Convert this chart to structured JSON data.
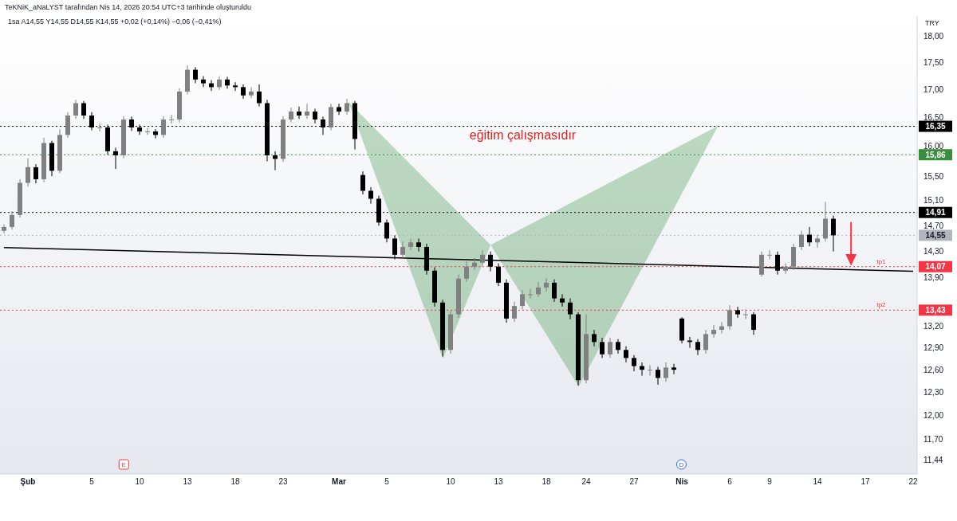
{
  "chart_data": {
    "type": "candlestick",
    "annotations": [
      "TeKNiK_aNaLYST tarafından Nis 14, 2026 20:54 UTC+3 tarihinde oluşturuldu",
      "1sa  A14,55  Y14,55  D14,55  K14,55  +0,02 (+0,14%)  −0,06 (−0,41%)",
      "eğitim çalışmasıdır",
      "TRY",
      "E",
      "D",
      {
        "text": "tp1",
        "y": 14.07
      },
      {
        "text": "tp2",
        "y": 13.43
      }
    ],
    "colors": [
      "#808080",
      "#808080",
      "#808080",
      "#808080",
      "#000000",
      "#808080",
      "#000000",
      "#808080",
      "#808080",
      "#808080",
      "#000000",
      "#000000",
      "#808080",
      "#000000",
      "#000000",
      "#808080",
      "#000000",
      "#000000",
      "#808080",
      "#000000",
      "#808080",
      "#808080",
      "#808080",
      "#808080",
      "#000000",
      "#000000",
      "#000000",
      "#808080",
      "#000000",
      "#000000",
      "#000000",
      "#808080",
      "#000000",
      "#000000",
      "#000000",
      "#808080",
      "#808080",
      "#000000",
      "#808080",
      "#000000",
      "#000000",
      "#808080",
      "#000000",
      "#808080",
      "#000000",
      "#000000",
      "#000000",
      "#000000",
      "#000000",
      "#000000",
      "#808080",
      "#808080",
      "#000000",
      "#000000",
      "#000000",
      "#000000",
      "#808080",
      "#808080",
      "#808080",
      "#808080",
      "#808080",
      "#000000",
      "#000000",
      "#000000",
      "#808080",
      "#808080",
      "#808080",
      "#808080",
      "#808080",
      "#000000",
      "#000000",
      "#000000",
      "#000000",
      "#808080",
      "#000000",
      "#000000",
      "#808080",
      "#000000",
      "#000000",
      "#000000",
      "#000000",
      "#808080",
      "#000000",
      "#808080",
      "#000000",
      "#000000",
      "#000000",
      "#000000",
      "#808080",
      "#808080",
      "#808080",
      "#808080",
      "#000000",
      "#808080",
      "#000000",
      "#808080",
      "#808080",
      "#000000",
      "#808080",
      "#808080",
      "#808080",
      "#000000",
      "#808080",
      "#808080",
      "#000000",
      null,
      null,
      null,
      null,
      null,
      null,
      null,
      null,
      null,
      null
    ],
    "categories": [
      null,
      null,
      null,
      "Şub",
      null,
      null,
      null,
      null,
      null,
      null,
      null,
      "5",
      null,
      null,
      null,
      null,
      null,
      "10",
      null,
      null,
      null,
      null,
      null,
      "13",
      null,
      null,
      null,
      null,
      null,
      "18",
      null,
      null,
      null,
      null,
      null,
      "23",
      null,
      null,
      null,
      null,
      null,
      null,
      "Mar",
      null,
      null,
      null,
      null,
      null,
      "5",
      null,
      null,
      null,
      null,
      null,
      null,
      null,
      "10",
      null,
      null,
      null,
      null,
      null,
      "13",
      null,
      null,
      null,
      null,
      null,
      "18",
      null,
      null,
      null,
      null,
      "24",
      null,
      null,
      null,
      null,
      null,
      "27",
      null,
      null,
      null,
      null,
      null,
      "Nis",
      null,
      null,
      null,
      null,
      null,
      "6",
      null,
      null,
      null,
      null,
      "9",
      null,
      null,
      null,
      null,
      null,
      "14",
      null,
      null,
      null,
      null,
      null,
      "17",
      null,
      null,
      null,
      null,
      null,
      "22"
    ],
    "ohlc": [
      [
        14.62,
        14.72,
        14.58,
        14.68
      ],
      [
        14.68,
        14.93,
        14.64,
        14.87
      ],
      [
        14.87,
        15.45,
        14.83,
        15.39
      ],
      [
        15.39,
        15.8,
        15.33,
        15.65
      ],
      [
        15.65,
        15.7,
        15.38,
        15.45
      ],
      [
        15.45,
        16.15,
        15.4,
        16.06
      ],
      [
        16.06,
        16.1,
        15.5,
        15.59
      ],
      [
        15.59,
        16.3,
        15.55,
        16.2
      ],
      [
        16.2,
        16.6,
        16.15,
        16.54
      ],
      [
        16.54,
        16.82,
        16.48,
        16.76
      ],
      [
        16.76,
        16.8,
        16.48,
        16.54
      ],
      [
        16.54,
        16.6,
        16.28,
        16.33
      ],
      [
        16.33,
        16.4,
        16.26,
        16.33
      ],
      [
        16.33,
        16.38,
        15.86,
        15.92
      ],
      [
        15.92,
        15.98,
        15.62,
        15.85
      ],
      [
        15.85,
        16.53,
        15.8,
        16.47
      ],
      [
        16.47,
        16.52,
        16.27,
        16.33
      ],
      [
        16.33,
        16.38,
        16.2,
        16.26
      ],
      [
        16.26,
        16.32,
        16.2,
        16.26
      ],
      [
        16.26,
        16.3,
        16.14,
        16.2
      ],
      [
        16.2,
        16.53,
        16.15,
        16.47
      ],
      [
        16.47,
        16.55,
        16.4,
        16.47
      ],
      [
        16.47,
        17.03,
        16.42,
        16.97
      ],
      [
        16.97,
        17.45,
        16.92,
        17.37
      ],
      [
        17.37,
        17.42,
        17.12,
        17.19
      ],
      [
        17.19,
        17.25,
        17.05,
        17.12
      ],
      [
        17.12,
        17.18,
        16.98,
        17.05
      ],
      [
        17.05,
        17.25,
        17.0,
        17.19
      ],
      [
        17.19,
        17.24,
        17.02,
        17.08
      ],
      [
        17.08,
        17.14,
        16.98,
        17.05
      ],
      [
        17.05,
        17.1,
        16.84,
        16.9
      ],
      [
        16.9,
        17.05,
        16.85,
        16.97
      ],
      [
        16.97,
        17.1,
        16.7,
        16.76
      ],
      [
        16.76,
        16.82,
        15.75,
        15.85
      ],
      [
        15.85,
        15.92,
        15.6,
        15.79
      ],
      [
        15.79,
        16.53,
        15.74,
        16.47
      ],
      [
        16.47,
        16.68,
        16.42,
        16.61
      ],
      [
        16.61,
        16.7,
        16.48,
        16.54
      ],
      [
        16.54,
        16.75,
        16.48,
        16.61
      ],
      [
        16.61,
        16.66,
        16.4,
        16.47
      ],
      [
        16.47,
        16.52,
        16.2,
        16.33
      ],
      [
        16.33,
        16.75,
        16.28,
        16.69
      ],
      [
        16.69,
        16.75,
        16.55,
        16.61
      ],
      [
        16.61,
        16.84,
        16.55,
        16.76
      ],
      [
        16.76,
        16.8,
        15.95,
        16.13
      ],
      [
        15.52,
        15.58,
        15.2,
        15.26
      ],
      [
        15.26,
        15.32,
        15.05,
        15.13
      ],
      [
        15.13,
        15.18,
        14.7,
        14.75
      ],
      [
        14.75,
        14.8,
        14.44,
        14.5
      ],
      [
        14.5,
        14.55,
        14.18,
        14.25
      ],
      [
        14.25,
        14.45,
        14.2,
        14.37
      ],
      [
        14.37,
        14.5,
        14.32,
        14.44
      ],
      [
        14.44,
        14.5,
        14.3,
        14.37
      ],
      [
        14.37,
        14.42,
        13.95,
        14.01
      ],
      [
        14.01,
        14.06,
        13.48,
        13.54
      ],
      [
        13.54,
        13.58,
        12.78,
        12.87
      ],
      [
        12.87,
        13.42,
        12.82,
        13.37
      ],
      [
        13.37,
        13.95,
        13.32,
        13.89
      ],
      [
        13.89,
        14.15,
        13.84,
        14.07
      ],
      [
        14.07,
        14.2,
        14.02,
        14.13
      ],
      [
        14.13,
        14.32,
        14.08,
        14.25
      ],
      [
        14.25,
        14.3,
        14.0,
        14.07
      ],
      [
        14.07,
        14.12,
        13.78,
        13.83
      ],
      [
        13.83,
        13.88,
        13.25,
        13.31
      ],
      [
        13.31,
        13.55,
        13.26,
        13.49
      ],
      [
        13.49,
        13.72,
        13.44,
        13.66
      ],
      [
        13.66,
        13.74,
        13.6,
        13.66
      ],
      [
        13.66,
        13.84,
        13.62,
        13.76
      ],
      [
        13.76,
        13.9,
        13.7,
        13.83
      ],
      [
        13.83,
        13.88,
        13.55,
        13.6
      ],
      [
        13.6,
        13.66,
        13.48,
        13.54
      ],
      [
        13.54,
        13.6,
        13.3,
        13.37
      ],
      [
        13.37,
        13.4,
        12.39,
        12.46
      ],
      [
        12.46,
        13.37,
        12.42,
        13.09
      ],
      [
        13.09,
        13.15,
        12.92,
        12.98
      ],
      [
        12.98,
        13.04,
        12.76,
        12.81
      ],
      [
        12.81,
        13.04,
        12.76,
        12.98
      ],
      [
        12.98,
        13.02,
        12.82,
        12.87
      ],
      [
        12.87,
        12.92,
        12.7,
        12.76
      ],
      [
        12.76,
        12.8,
        12.58,
        12.65
      ],
      [
        12.65,
        12.7,
        12.52,
        12.6
      ],
      [
        12.6,
        12.66,
        12.52,
        12.6
      ],
      [
        12.6,
        12.64,
        12.4,
        12.49
      ],
      [
        12.49,
        12.7,
        12.44,
        12.63
      ],
      [
        12.63,
        12.68,
        12.54,
        12.6
      ],
      [
        13.31,
        13.33,
        12.96,
        13.0
      ],
      [
        13.0,
        13.05,
        12.9,
        12.98
      ],
      [
        12.98,
        13.02,
        12.8,
        12.87
      ],
      [
        12.87,
        13.15,
        12.82,
        13.09
      ],
      [
        13.09,
        13.22,
        13.04,
        13.15
      ],
      [
        13.15,
        13.26,
        13.1,
        13.2
      ],
      [
        13.2,
        13.5,
        13.15,
        13.43
      ],
      [
        13.43,
        13.48,
        13.32,
        13.37
      ],
      [
        13.37,
        13.44,
        13.3,
        13.37
      ],
      [
        13.37,
        13.4,
        13.08,
        13.15
      ],
      [
        13.95,
        14.3,
        13.92,
        14.25
      ],
      [
        14.25,
        14.32,
        14.18,
        14.25
      ],
      [
        14.25,
        14.3,
        13.95,
        14.01
      ],
      [
        14.01,
        14.12,
        13.96,
        14.07
      ],
      [
        14.07,
        14.42,
        14.02,
        14.37
      ],
      [
        14.37,
        14.62,
        14.32,
        14.56
      ],
      [
        14.56,
        14.68,
        14.38,
        14.44
      ],
      [
        14.44,
        14.56,
        14.36,
        14.5
      ],
      [
        14.5,
        15.08,
        14.45,
        14.81
      ],
      [
        14.81,
        14.86,
        14.3,
        14.55
      ],
      null,
      null,
      null,
      null,
      null,
      null,
      null,
      null,
      null,
      null
    ],
    "series": [
      {
        "type": "line",
        "color": "#000000",
        "values": [
          14.36,
          null,
          null,
          null,
          null,
          null,
          null,
          null,
          null,
          null,
          null,
          null,
          null,
          null,
          null,
          null,
          null,
          null,
          null,
          null,
          null,
          null,
          null,
          null,
          null,
          null,
          null,
          null,
          null,
          null,
          null,
          null,
          null,
          null,
          null,
          null,
          null,
          null,
          null,
          null,
          null,
          null,
          null,
          null,
          null,
          null,
          null,
          null,
          null,
          null,
          null,
          null,
          null,
          null,
          null,
          null,
          null,
          null,
          null,
          null,
          null,
          null,
          null,
          null,
          null,
          null,
          null,
          null,
          null,
          null,
          null,
          null,
          null,
          null,
          null,
          null,
          null,
          null,
          null,
          null,
          null,
          null,
          null,
          null,
          null,
          null,
          null,
          null,
          null,
          null,
          null,
          null,
          null,
          null,
          null,
          null,
          null,
          null,
          null,
          null,
          null,
          null,
          null,
          null,
          null,
          null,
          null,
          null,
          null,
          null,
          null,
          null,
          null,
          null,
          14.0
        ]
      }
    ],
    "ylim": [
      11.27,
      18.4
    ],
    "log": true,
    "yticks": [
      {
        "value": 18,
        "label": "18,00"
      },
      {
        "value": 17.5,
        "label": "17,50"
      },
      {
        "value": 17,
        "label": "17,00"
      },
      {
        "value": 16.5,
        "label": "16,50"
      },
      {
        "value": 16,
        "label": "16,00"
      },
      {
        "value": 15.5,
        "label": "15,50"
      },
      {
        "value": 15.1,
        "label": "15,10"
      },
      {
        "value": 14.7,
        "label": "14,70"
      },
      {
        "value": 14.3,
        "label": "14,30"
      },
      {
        "value": 13.9,
        "label": "13,90"
      },
      {
        "value": 13.2,
        "label": "13,20"
      },
      {
        "value": 12.9,
        "label": "12,90"
      },
      {
        "value": 12.6,
        "label": "12,60"
      },
      {
        "value": 12.3,
        "label": "12,30"
      },
      {
        "value": 12,
        "label": "12,00"
      },
      {
        "value": 11.7,
        "label": "11,70"
      },
      {
        "value": 11.44,
        "label": "11,44"
      }
    ],
    "ref_lines": [
      {
        "axis": "y",
        "value": 16.35,
        "label": "16,35",
        "color": "#000000",
        "line_style": "dotted"
      },
      {
        "axis": "y",
        "value": 15.86,
        "label": "15,86",
        "color": "#388e3c",
        "line_style": "dotted"
      },
      {
        "axis": "y",
        "value": 14.91,
        "label": "14,91",
        "color": "#000000",
        "line_style": "dotted"
      },
      {
        "axis": "y",
        "value": 14.55,
        "label": "14,55",
        "color": "#b2b5be",
        "line_style": "dotted"
      },
      {
        "axis": "y",
        "value": 14.07,
        "label": "14,07",
        "color": "#f23645",
        "line_style": "dotted"
      },
      {
        "axis": "y",
        "value": 13.43,
        "label": "13,43",
        "color": "#f23645",
        "line_style": "dotted"
      }
    ]
  }
}
